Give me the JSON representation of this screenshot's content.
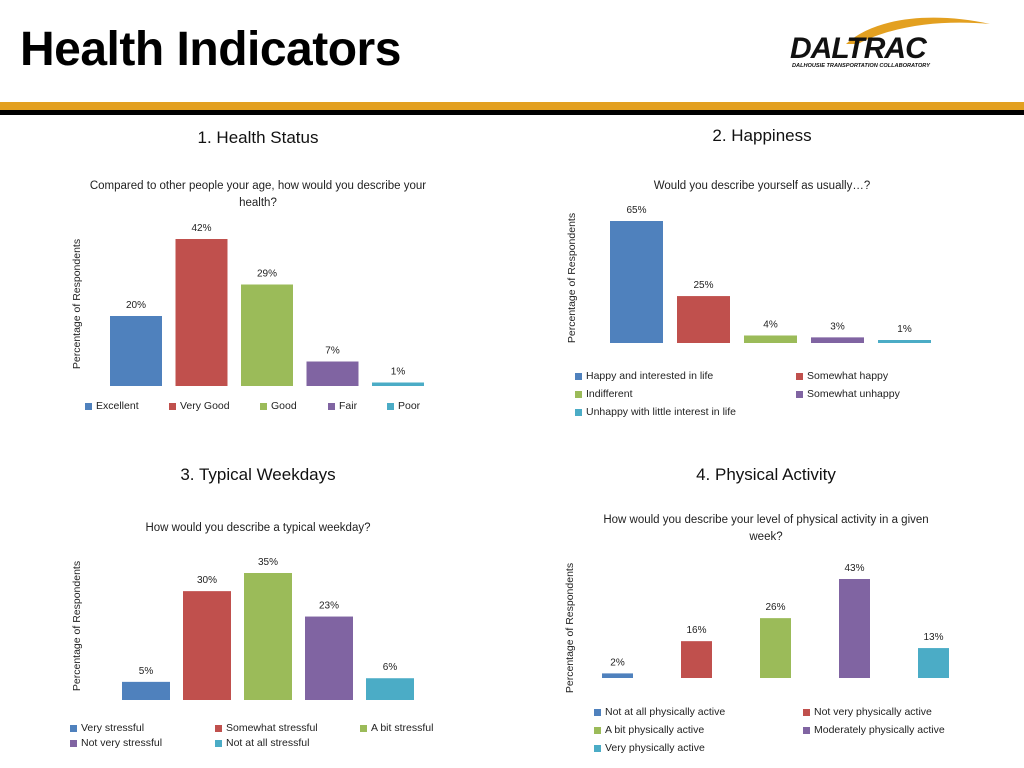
{
  "slide": {
    "title": "Health Indicators",
    "logo_text": "DALTRAC",
    "logo_subtitle": "DALHOUSIE TRANSPORTATION COLLABORATORY"
  },
  "colors": {
    "blue": "#4f81bd",
    "red": "#c0504d",
    "green": "#9bbb59",
    "purple": "#8064a2",
    "teal": "#4bacc6",
    "gold": "#e3a020"
  },
  "chart_data": [
    {
      "type": "bar",
      "heading": "1. Health Status",
      "title": "Compared to other people your age, how would you describe your health?",
      "ylabel": "Percentage of Respondents",
      "categories": [
        "Excellent",
        "Very Good",
        "Good",
        "Fair",
        "Poor"
      ],
      "values": [
        20,
        42,
        29,
        7,
        1
      ],
      "labels": [
        "20%",
        "42%",
        "29%",
        "7%",
        "1%"
      ],
      "ylim": [
        0,
        42
      ],
      "grid": false,
      "legend": "bottom"
    },
    {
      "type": "bar",
      "heading": "2. Happiness",
      "title": "Would you describe yourself as usually…?",
      "ylabel": "Percentage of Respondents",
      "categories": [
        "Happy and interested in life",
        "Somewhat happy",
        "Indifferent",
        "Somewhat unhappy",
        "Unhappy with little interest in life"
      ],
      "values": [
        65,
        25,
        4,
        3,
        1
      ],
      "labels": [
        "65%",
        "25%",
        "4%",
        "3%",
        "1%"
      ],
      "ylim": [
        0,
        65
      ],
      "grid": false,
      "legend": "bottom"
    },
    {
      "type": "bar",
      "heading": "3. Typical Weekdays",
      "title": "How would you describe a typical weekday?",
      "ylabel": "Percentage of Respondents",
      "categories": [
        "Very stressful",
        "Somewhat stressful",
        "A bit stressful",
        "Not very stressful",
        "Not at all stressful"
      ],
      "values": [
        5,
        30,
        35,
        23,
        6
      ],
      "labels": [
        "5%",
        "30%",
        "35%",
        "23%",
        "6%"
      ],
      "ylim": [
        0,
        35
      ],
      "grid": false,
      "legend": "bottom"
    },
    {
      "type": "bar",
      "heading": "4. Physical Activity",
      "title": "How would you describe your level of physical activity in a given week?",
      "ylabel": "Percentage of Respondents",
      "categories": [
        "Not at all physically active",
        "Not very physically active",
        "A bit physically active",
        "Moderately physically active",
        "Very physically active"
      ],
      "values": [
        2,
        16,
        26,
        43,
        13
      ],
      "labels": [
        "2%",
        "16%",
        "26%",
        "43%",
        "13%"
      ],
      "ylim": [
        0,
        43
      ],
      "grid": false,
      "legend": "bottom"
    }
  ]
}
